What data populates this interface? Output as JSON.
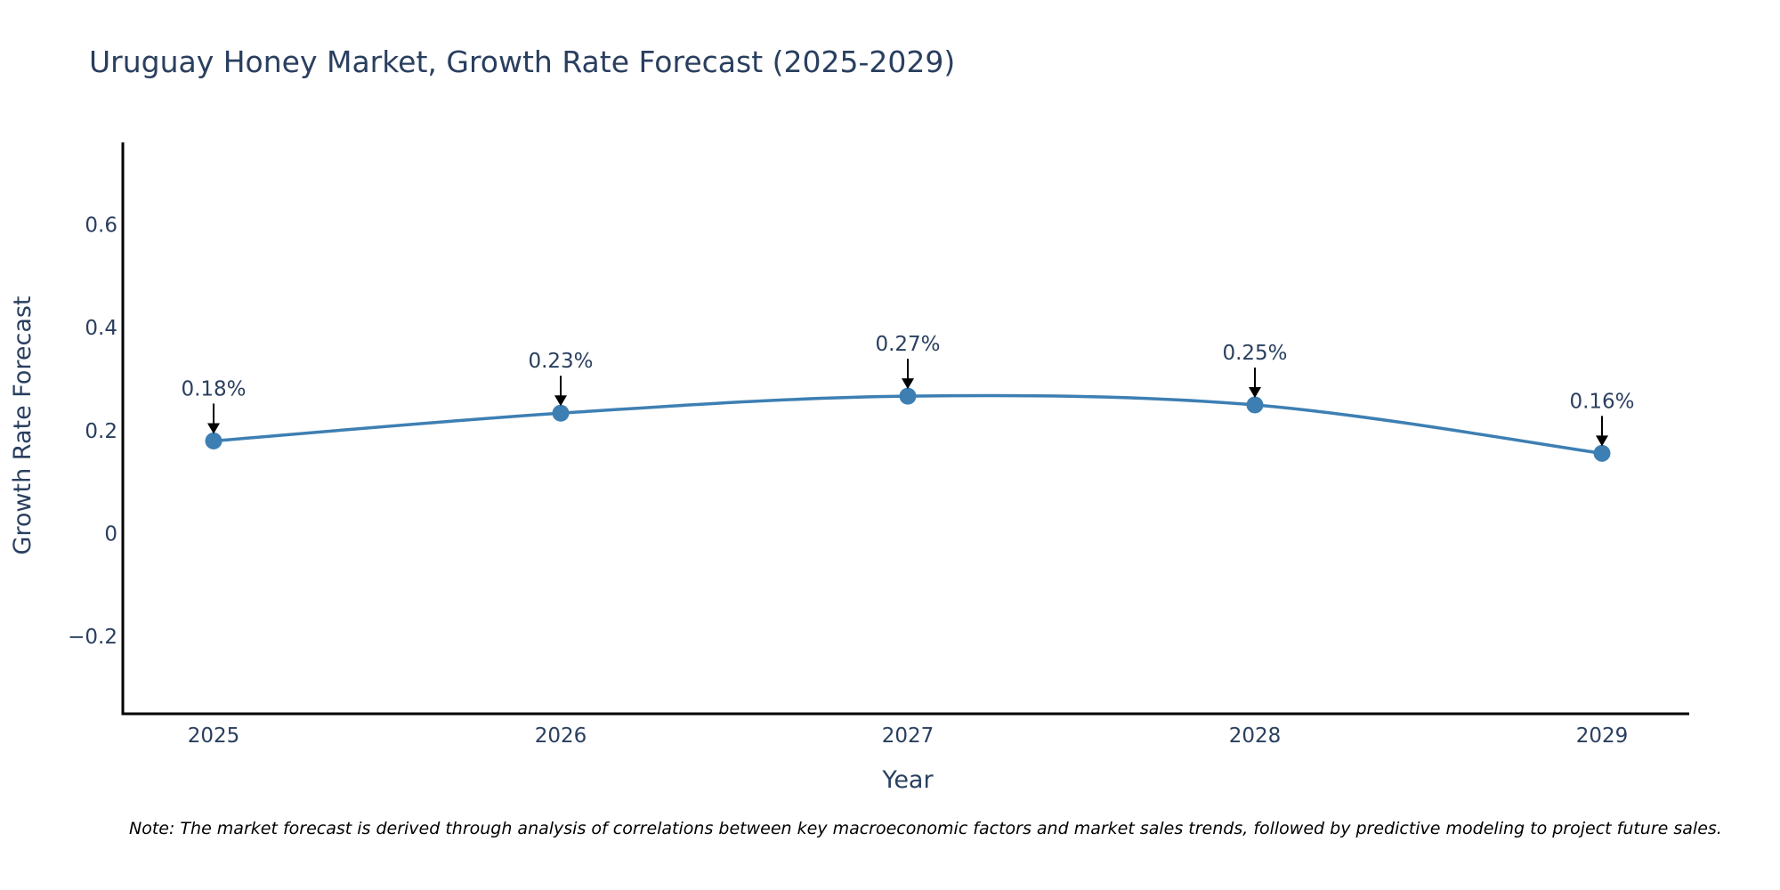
{
  "chart_data": {
    "type": "line",
    "title": "Uruguay Honey Market, Growth Rate Forecast (2025-2029)",
    "xlabel": "Year",
    "ylabel": "Growth Rate Forecast",
    "categories": [
      "2025",
      "2026",
      "2027",
      "2028",
      "2029"
    ],
    "series": [
      {
        "name": "Growth Rate Forecast",
        "values": [
          0.18,
          0.234,
          0.267,
          0.25,
          0.156
        ],
        "labels": [
          "0.18%",
          "0.23%",
          "0.27%",
          "0.25%",
          "0.16%"
        ]
      }
    ],
    "ylim": [
      -0.35,
      0.76
    ],
    "yticks": [
      -0.2,
      0,
      0.2,
      0.4,
      0.6
    ],
    "ytick_labels": [
      "−0.2",
      "0",
      "0.2",
      "0.4",
      "0.6"
    ],
    "grid": false,
    "line_shape": "spline",
    "colors": {
      "line": "#3d7fb3",
      "marker": "#3d7fb3",
      "axis": "#000000",
      "arrow": "#000000",
      "text": "#2a3f5f"
    }
  },
  "note": "Note: The market forecast is derived through analysis of correlations between key macroeconomic factors and market sales trends, followed by predictive modeling to project future sales."
}
